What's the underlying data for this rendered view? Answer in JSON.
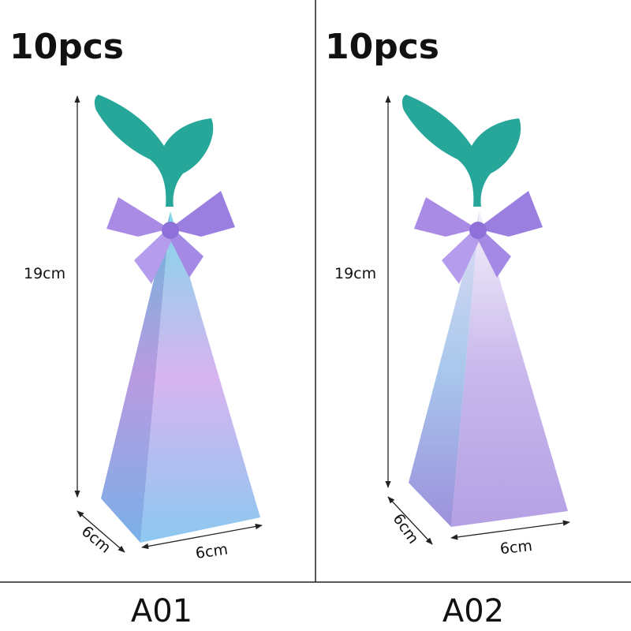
{
  "panels": [
    {
      "quantity": "10pcs",
      "height": "19cm",
      "depth": "6cm",
      "width": "6cm",
      "label": "A01"
    },
    {
      "quantity": "10pcs",
      "height": "19cm",
      "depth": "6cm",
      "width": "6cm",
      "label": "A02"
    }
  ]
}
